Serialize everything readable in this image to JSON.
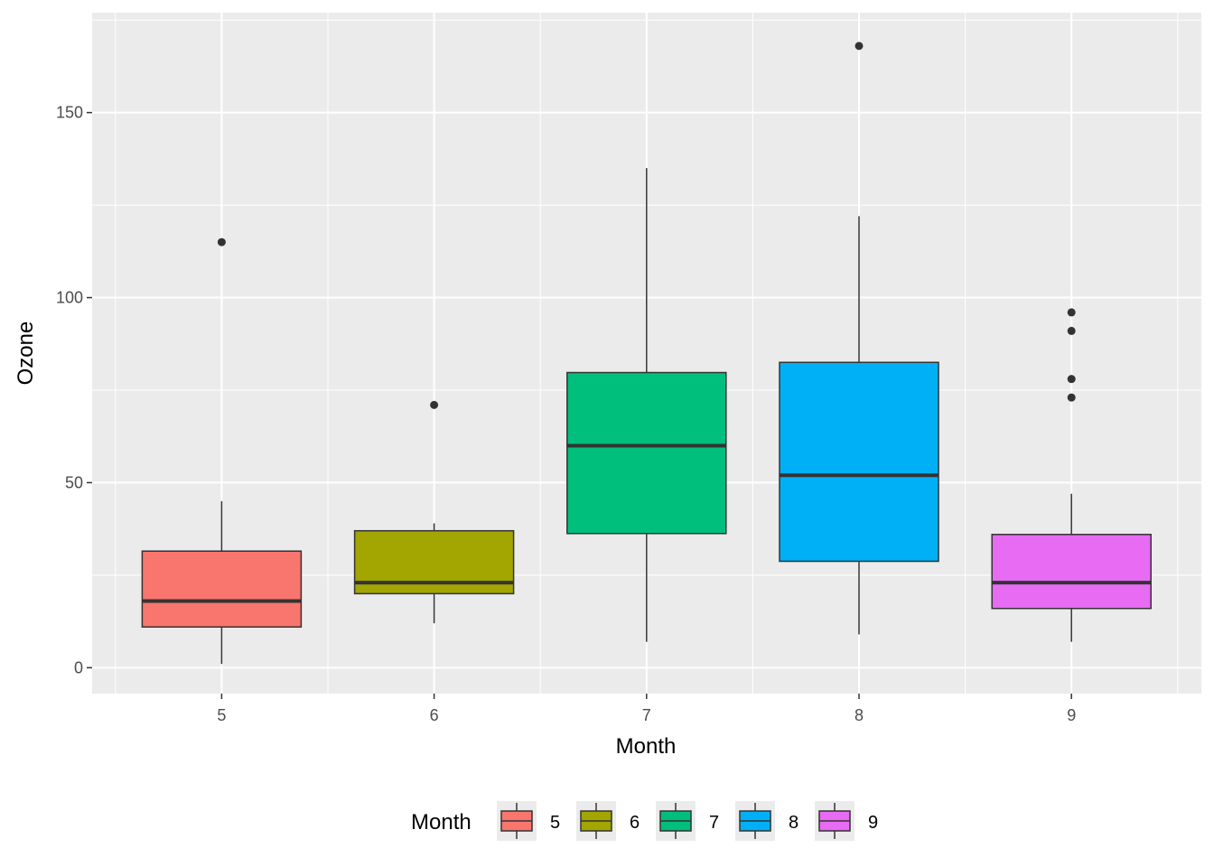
{
  "chart_data": {
    "type": "boxplot",
    "title": "",
    "xlabel": "Month",
    "ylabel": "Ozone",
    "categories": [
      "5",
      "6",
      "7",
      "8",
      "9"
    ],
    "ylim": [
      -7,
      177
    ],
    "yticks": [
      0,
      50,
      100,
      150
    ],
    "ytick_labels": [
      "0",
      "50",
      "100",
      "150"
    ],
    "grid": true,
    "boxes": [
      {
        "category": "5",
        "whisker_low": 1,
        "q1": 11,
        "median": 18,
        "q3": 31.5,
        "whisker_high": 45,
        "outliers": [
          115
        ],
        "color": "#F8766D"
      },
      {
        "category": "6",
        "whisker_low": 12,
        "q1": 20,
        "median": 23,
        "q3": 37,
        "whisker_high": 39,
        "outliers": [
          71
        ],
        "color": "#A3A500"
      },
      {
        "category": "7",
        "whisker_low": 7,
        "q1": 36.25,
        "median": 60,
        "q3": 79.75,
        "whisker_high": 135,
        "outliers": [],
        "color": "#00BF7D"
      },
      {
        "category": "8",
        "whisker_low": 9,
        "q1": 28.75,
        "median": 52,
        "q3": 82.5,
        "whisker_high": 122,
        "outliers": [
          168
        ],
        "color": "#00B0F6"
      },
      {
        "category": "9",
        "whisker_low": 7,
        "q1": 16,
        "median": 23,
        "q3": 36,
        "whisker_high": 47,
        "outliers": [
          73,
          78,
          91,
          96
        ],
        "color": "#E76BF3"
      }
    ],
    "legend": {
      "title": "Month",
      "position": "bottom",
      "entries": [
        "5",
        "6",
        "7",
        "8",
        "9"
      ]
    }
  }
}
